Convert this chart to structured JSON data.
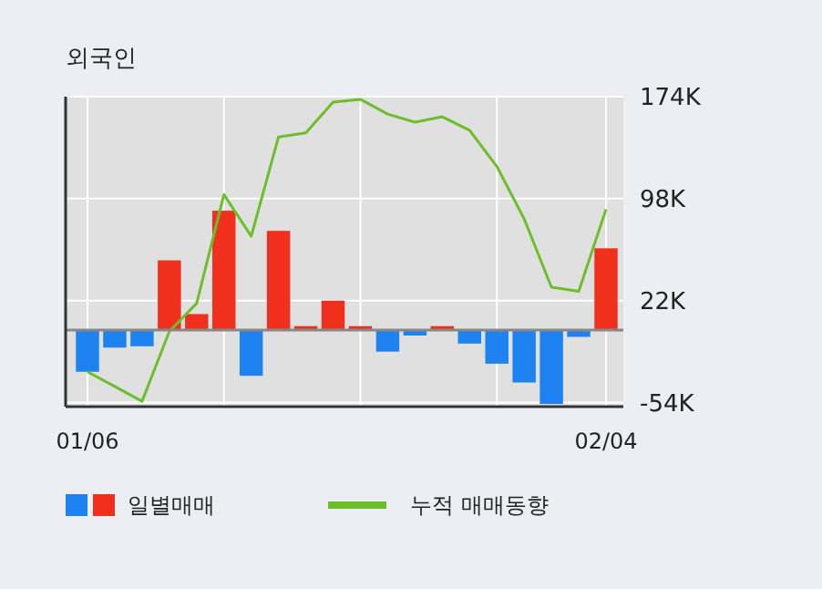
{
  "chart_data": {
    "type": "bar",
    "title": "외국인",
    "categories": [
      "01/06",
      null,
      null,
      null,
      null,
      null,
      null,
      null,
      null,
      null,
      null,
      null,
      null,
      null,
      null,
      null,
      null,
      null,
      null,
      "02/04"
    ],
    "series": [
      {
        "name": "일별매매",
        "colors": [
          "#1e82f0",
          "#1e82f0",
          "#1e82f0",
          "#f0301c",
          "#f0301c",
          "#f0301c",
          "#1e82f0",
          "#f0301c",
          "#f0301c",
          "#f0301c",
          "#f0301c",
          "#1e82f0",
          "#1e82f0",
          "#f0301c",
          "#1e82f0",
          "#1e82f0",
          "#1e82f0",
          "#1e82f0",
          "#1e82f0",
          "#f0301c"
        ],
        "values": [
          -31000,
          -13000,
          -12000,
          52000,
          12000,
          89000,
          -34000,
          74000,
          3000,
          22000,
          3000,
          -16000,
          -4000,
          3000,
          -10000,
          -25000,
          -39000,
          -55000,
          -5000,
          61000
        ]
      },
      {
        "name": "누적 매매동향",
        "type": "line",
        "color": "#6cbf2a",
        "values": [
          -31000,
          -42000,
          -53000,
          -1000,
          20000,
          101000,
          70000,
          144000,
          147000,
          170000,
          172000,
          161000,
          155000,
          159000,
          149000,
          122000,
          83000,
          32000,
          29000,
          90000
        ]
      }
    ],
    "ylim": [
      -57000,
      174000
    ],
    "yticks": [
      {
        "value": 174000,
        "label": "174K"
      },
      {
        "value": 98000,
        "label": "98K"
      },
      {
        "value": 22000,
        "label": "22K"
      },
      {
        "value": -54000,
        "label": "-54K"
      }
    ],
    "grid": true,
    "legend": "bottom",
    "marker": "none",
    "line_style": "solid"
  }
}
